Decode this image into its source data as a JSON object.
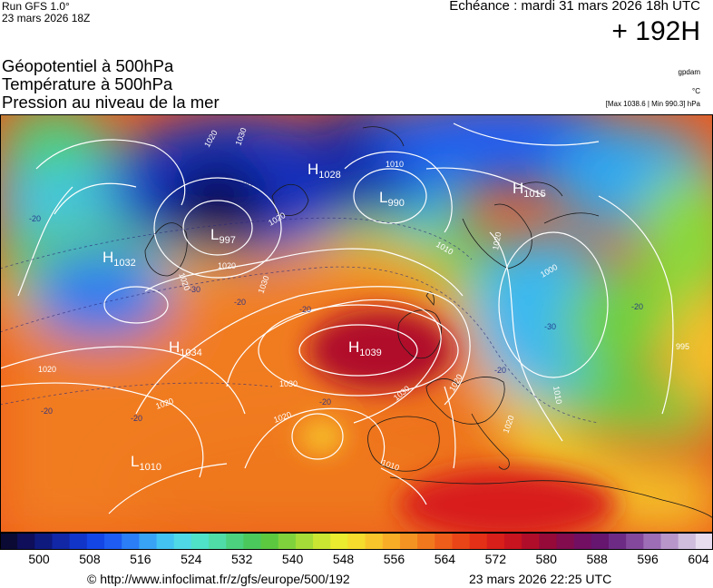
{
  "header": {
    "run_label": "Run GFS 1.0°",
    "run_date": "23 mars 2026 18Z",
    "echeance": "Echéance : mardi 31 mars 2026 18h UTC",
    "lead_time": "+ 192H",
    "params": [
      "Géopotentiel à 500hPa",
      "Température à 500hPa",
      "Pression au niveau de la mer"
    ],
    "units": [
      "gpdam",
      "°C",
      "[Max 1038.6 | Min 990.3] hPa"
    ]
  },
  "map": {
    "pressure_centers": [
      {
        "type": "H",
        "value": "1032"
      },
      {
        "type": "H",
        "value": "1028"
      },
      {
        "type": "L",
        "value": "990"
      },
      {
        "type": "H",
        "value": "1015"
      },
      {
        "type": "L",
        "value": "997"
      },
      {
        "type": "H",
        "value": "1034"
      },
      {
        "type": "H",
        "value": "1039"
      },
      {
        "type": "L",
        "value": "1010"
      }
    ],
    "isobar_labels": [
      "1020",
      "1030",
      "1020",
      "1010",
      "1010",
      "1020",
      "1000",
      "1020",
      "1020",
      "1030",
      "1030",
      "1020",
      "1020",
      "1020",
      "1030",
      "1010",
      "1020",
      "1020",
      "1010",
      "995"
    ],
    "temperature_labels": [
      "-30",
      "-20",
      "-30",
      "-20",
      "-20",
      "-20",
      "-20",
      "-20",
      "-20",
      "-20",
      "-30"
    ]
  },
  "scale": {
    "colors": [
      "#0a0a35",
      "#0e0e5a",
      "#0f1a7f",
      "#1127a6",
      "#1235c9",
      "#1446e6",
      "#1e5cf2",
      "#2b7ef5",
      "#38a2f5",
      "#42c3f2",
      "#4fd9e6",
      "#50e1c9",
      "#4fdca6",
      "#4cd27e",
      "#4bc85c",
      "#5bc840",
      "#7fd23c",
      "#a5dc37",
      "#cbe632",
      "#ebeb2f",
      "#f5dc2d",
      "#f8c62b",
      "#f8ad27",
      "#f59322",
      "#f2781e",
      "#ee5e1a",
      "#ea4517",
      "#e33016",
      "#d81f1a",
      "#c8141f",
      "#b00d2a",
      "#960a3a",
      "#820c4e",
      "#720f62",
      "#66166f",
      "#6e2b86",
      "#83489c",
      "#9d6db5",
      "#b896ca",
      "#d0bcdc",
      "#e8dcef"
    ],
    "ticks": [
      500,
      508,
      516,
      524,
      532,
      540,
      548,
      556,
      564,
      572,
      580,
      588,
      596,
      604
    ]
  },
  "footer": {
    "source": "© http://www.infoclimat.fr/z/gfs/europe/500/192",
    "generated": "23 mars 2026 22:25 UTC"
  }
}
